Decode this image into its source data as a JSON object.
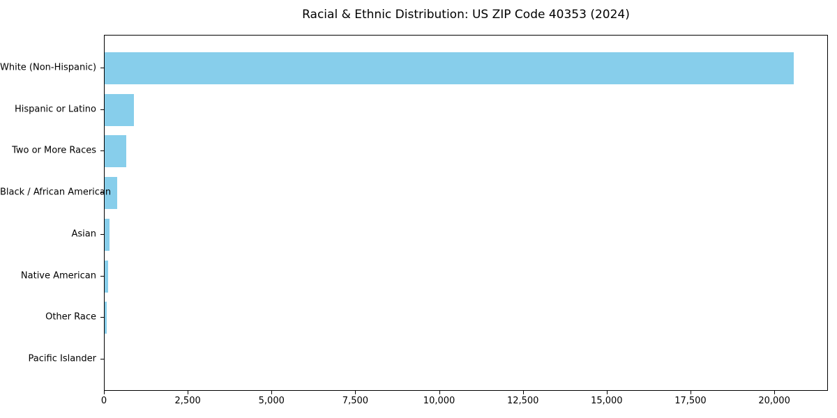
{
  "chart_data": {
    "type": "bar",
    "orientation": "horizontal",
    "title": "Racial & Ethnic Distribution: US ZIP Code 40353 (2024)",
    "categories": [
      "White (Non-Hispanic)",
      "Hispanic or Latino",
      "Two or More Races",
      "Black / African American",
      "Asian",
      "Native American",
      "Other Race",
      "Pacific Islander"
    ],
    "values": [
      20560,
      875,
      645,
      375,
      145,
      105,
      70,
      0
    ],
    "xlabel": "",
    "ylabel": "",
    "xlim": [
      0,
      21600
    ],
    "xticks": [
      0,
      2500,
      5000,
      7500,
      10000,
      12500,
      15000,
      17500,
      20000
    ],
    "bar_color": "#87CEEB",
    "text_color": "#000000",
    "grid": false,
    "legend": false
  }
}
